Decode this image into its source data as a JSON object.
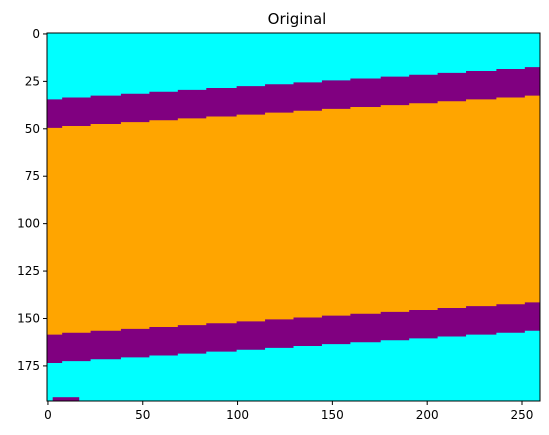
{
  "chart_data": {
    "type": "heatmap",
    "title": "Original",
    "xlabel": "",
    "ylabel": "",
    "xlim": [
      -0.5,
      259.5
    ],
    "ylim": [
      193.5,
      -0.5
    ],
    "x_ticks": [
      0,
      50,
      100,
      150,
      200,
      250
    ],
    "y_ticks": [
      0,
      25,
      50,
      75,
      100,
      125,
      150,
      175
    ],
    "grid": false,
    "colors": {
      "background": "#00ffff",
      "band": "#800080",
      "center": "#ffa500"
    },
    "image_size": {
      "width": 260,
      "height": 194
    },
    "boundaries": {
      "upper_band_top": {
        "x": [
          0,
          259
        ],
        "y": [
          35,
          18
        ]
      },
      "upper_band_bottom": {
        "x": [
          0,
          259
        ],
        "y": [
          50,
          33
        ]
      },
      "lower_band_top": {
        "x": [
          0,
          259
        ],
        "y": [
          159,
          142
        ]
      },
      "lower_band_bottom": {
        "x": [
          0,
          259
        ],
        "y": [
          174,
          157
        ]
      }
    },
    "bottom_stub": {
      "x": [
        3,
        16
      ],
      "y_top": 192,
      "color": "#800080"
    }
  }
}
